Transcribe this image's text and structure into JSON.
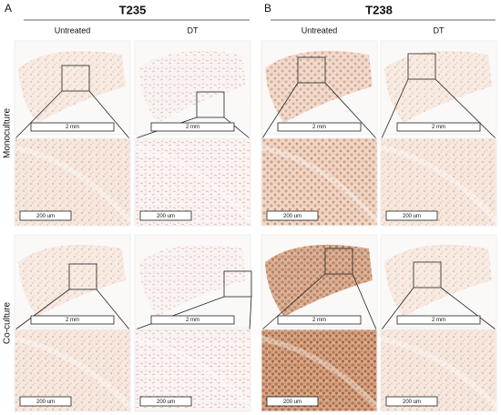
{
  "row_labels": [
    "Monoculture",
    "Co-culture"
  ],
  "panels": [
    {
      "label": "A",
      "title": "T235",
      "columns": [
        "Untreated",
        "DT"
      ],
      "cells": [
        [
          {
            "overview_scale": "2 mm",
            "zoom_scale": "200 um"
          },
          {
            "overview_scale": "2 mm",
            "zoom_scale": "200 um"
          }
        ],
        [
          {
            "overview_scale": "2 mm",
            "zoom_scale": "200 um"
          },
          {
            "overview_scale": "2 mm",
            "zoom_scale": "200 um"
          }
        ]
      ]
    },
    {
      "label": "B",
      "title": "T238",
      "columns": [
        "Untreated",
        "DT"
      ],
      "cells": [
        [
          {
            "overview_scale": "2 mm",
            "zoom_scale": "200 um"
          },
          {
            "overview_scale": "2 mm",
            "zoom_scale": "200 um"
          }
        ],
        [
          {
            "overview_scale": "2 mm",
            "zoom_scale": "200 um"
          },
          {
            "overview_scale": "2 mm",
            "zoom_scale": "200 um"
          }
        ]
      ]
    }
  ]
}
